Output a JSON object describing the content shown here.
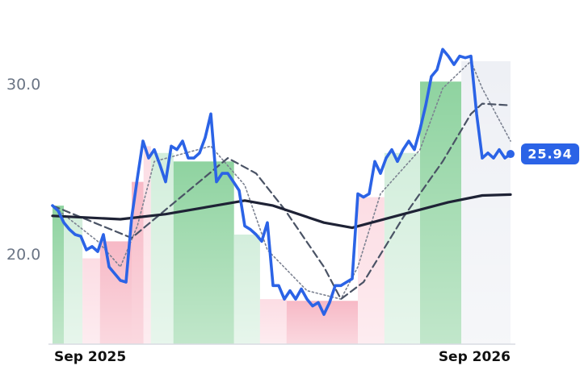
{
  "chart_data": {
    "type": "line",
    "ylim": [
      14.75,
      35
    ],
    "yticks": [
      {
        "value": 20,
        "label": "20.0"
      },
      {
        "value": 30,
        "label": "30.0"
      }
    ],
    "xlim": [
      0,
      81
    ],
    "xticks": [
      {
        "value": 0,
        "label": "Sep 2025"
      },
      {
        "value": 81,
        "label": "Sep 2026"
      }
    ],
    "bands": [
      {
        "start": 0,
        "end": 2,
        "top": 22.9,
        "color": "#8fd3a0"
      },
      {
        "start": 2,
        "end": 5.3,
        "top": 22.2,
        "color": "#d3eedc"
      },
      {
        "start": 5.3,
        "end": 8.4,
        "top": 19.8,
        "color": "#fcdde4"
      },
      {
        "start": 8.4,
        "end": 14,
        "top": 20.8,
        "color": "#f7b9c6"
      },
      {
        "start": 14,
        "end": 16.1,
        "top": 24.3,
        "color": "#f7b9c6"
      },
      {
        "start": 16.1,
        "end": 17.4,
        "top": 26.4,
        "color": "#fcdde4"
      },
      {
        "start": 17.4,
        "end": 21.4,
        "top": 26.0,
        "color": "#d3eedc"
      },
      {
        "start": 21.4,
        "end": 32.1,
        "top": 25.5,
        "color": "#8fd3a0"
      },
      {
        "start": 32.1,
        "end": 36.7,
        "top": 21.2,
        "color": "#d3eedc"
      },
      {
        "start": 36.7,
        "end": 41.4,
        "top": 17.4,
        "color": "#fcdde4"
      },
      {
        "start": 41.4,
        "end": 54,
        "top": 17.3,
        "color": "#f7b9c6"
      },
      {
        "start": 54,
        "end": 58.7,
        "top": 23.4,
        "color": "#fcdde4"
      },
      {
        "start": 58.7,
        "end": 65,
        "top": 26.0,
        "color": "#d3eedc"
      },
      {
        "start": 65,
        "end": 72.3,
        "top": 30.2,
        "color": "#8fd3a0"
      },
      {
        "start": 72.3,
        "end": 81,
        "top": 31.4,
        "color": "#eef0f5"
      }
    ],
    "series": [
      {
        "color": "#7c8291",
        "style": "dotted",
        "x": [
          0,
          8,
          12,
          15,
          18,
          28,
          34,
          38,
          45,
          51,
          54,
          58,
          65,
          69,
          74,
          76,
          81
        ],
        "values": [
          22.9,
          20.8,
          19.3,
          21.7,
          25.5,
          26.4,
          24.1,
          20.3,
          17.9,
          17.4,
          19.3,
          23.6,
          26.2,
          29.8,
          31.4,
          29.8,
          26.7
        ]
      },
      {
        "color": "#4a5365",
        "style": "dashed",
        "x": [
          0,
          14,
          31,
          36,
          41,
          48,
          51,
          55,
          62,
          69,
          74,
          76,
          81
        ],
        "values": [
          22.9,
          21.0,
          25.7,
          24.8,
          22.7,
          19.3,
          17.4,
          18.4,
          22.2,
          25.5,
          28.3,
          28.9,
          28.8
        ]
      },
      {
        "color": "#1e2235",
        "style": "thick",
        "x": [
          0,
          12,
          20,
          34,
          39,
          48,
          53,
          62,
          70,
          76,
          81
        ],
        "values": [
          22.3,
          22.1,
          22.4,
          23.2,
          22.9,
          21.9,
          21.6,
          22.4,
          23.1,
          23.5,
          23.55
        ]
      },
      {
        "color": "#2b63e6",
        "style": "price",
        "x": [
          0,
          1,
          2,
          3,
          4,
          5,
          6,
          7,
          8,
          9,
          10,
          11,
          12,
          13,
          14,
          15,
          16,
          17,
          18,
          19,
          20,
          21,
          22,
          23,
          24,
          25,
          26,
          27,
          28,
          29,
          30,
          31,
          32,
          33,
          34,
          35,
          36,
          37,
          38,
          39,
          40,
          41,
          42,
          43,
          44,
          45,
          46,
          47,
          48,
          49,
          50,
          51,
          52,
          53,
          54,
          55,
          56,
          57,
          58,
          59,
          60,
          61,
          62,
          63,
          64,
          65,
          66,
          67,
          68,
          69,
          70,
          71,
          72,
          73,
          74,
          75,
          76,
          77,
          78,
          79,
          80,
          81
        ],
        "values": [
          22.9,
          22.6,
          21.9,
          21.5,
          21.2,
          21.1,
          20.3,
          20.5,
          20.2,
          21.2,
          19.3,
          18.9,
          18.5,
          18.4,
          22.2,
          24.5,
          26.7,
          25.7,
          26.2,
          25.3,
          24.3,
          26.4,
          26.2,
          26.7,
          25.7,
          25.7,
          26.0,
          26.9,
          28.3,
          24.3,
          24.8,
          24.8,
          24.3,
          23.8,
          21.7,
          21.5,
          21.2,
          20.8,
          21.9,
          18.2,
          18.2,
          17.4,
          17.9,
          17.4,
          18.0,
          17.4,
          17.0,
          17.2,
          16.5,
          17.2,
          18.2,
          18.2,
          18.4,
          18.6,
          23.6,
          23.4,
          23.6,
          25.5,
          24.8,
          25.7,
          26.2,
          25.5,
          26.2,
          26.7,
          26.2,
          27.4,
          28.8,
          30.5,
          30.9,
          32.1,
          31.7,
          31.2,
          31.7,
          31.6,
          31.7,
          28.3,
          25.7,
          26.0,
          25.7,
          26.2,
          25.7,
          25.94
        ]
      }
    ]
  }
}
